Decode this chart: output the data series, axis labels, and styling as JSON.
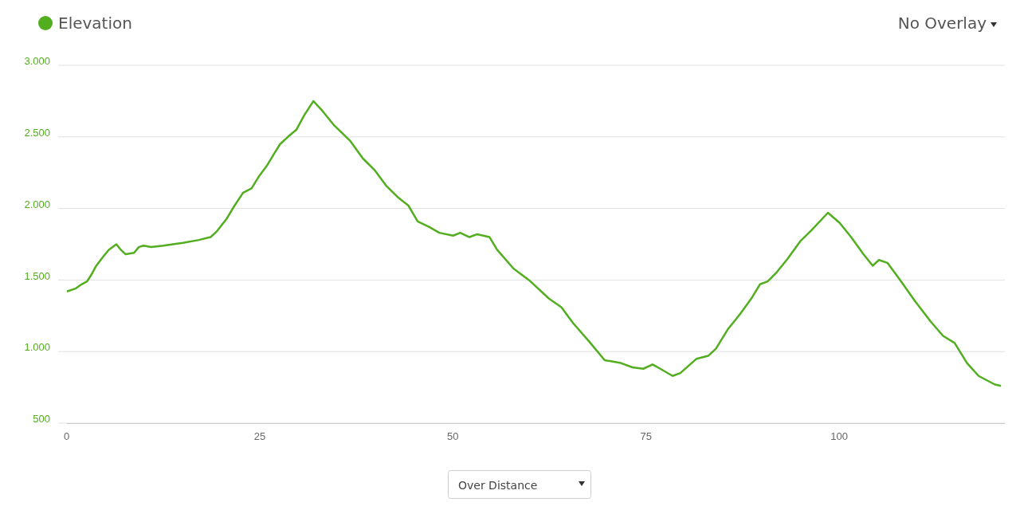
{
  "chart_data": {
    "type": "line",
    "legend": "top left",
    "grid": "y",
    "marker": "none",
    "line_style": "solid",
    "xlim": [
      0,
      121.5
    ],
    "xticks": [
      0,
      25,
      50,
      75,
      100
    ],
    "ylim": [
      500,
      3000
    ],
    "yticks": [
      {
        "value": 500,
        "label": "500"
      },
      {
        "value": 1000,
        "label": "1.000"
      },
      {
        "value": 1500,
        "label": "1.500"
      },
      {
        "value": 2000,
        "label": "2.000"
      },
      {
        "value": 2500,
        "label": "2.500"
      },
      {
        "value": 3000,
        "label": "3.000"
      }
    ],
    "annotations": [
      "No Overlay",
      "Over Distance"
    ],
    "series": [
      {
        "name": "Elevation",
        "color": "#52ae1f",
        "x": [
          0.1,
          1.2,
          2.0,
          2.7,
          3.3,
          3.9,
          4.6,
          5.5,
          6.5,
          7.1,
          7.7,
          8.8,
          9.4,
          10.0,
          11.0,
          12.6,
          15.1,
          17.2,
          18.7,
          19.5,
          20.8,
          21.8,
          22.9,
          24.0,
          24.9,
          26.0,
          27.0,
          27.7,
          28.7,
          29.8,
          30.8,
          32.0,
          33.2,
          34.7,
          36.8,
          38.4,
          39.9,
          41.4,
          42.9,
          44.3,
          45.5,
          47.0,
          48.3,
          50.1,
          51.0,
          52.2,
          53.2,
          54.8,
          55.8,
          57.9,
          59.9,
          62.5,
          64.1,
          65.6,
          67.7,
          69.7,
          71.8,
          73.3,
          74.7,
          75.9,
          76.9,
          78.5,
          79.5,
          81.6,
          83.1,
          84.1,
          85.7,
          87.2,
          88.8,
          89.8,
          90.8,
          91.9,
          93.4,
          95.0,
          96.5,
          98.6,
          100.1,
          101.6,
          103.2,
          104.4,
          105.2,
          106.3,
          107.8,
          109.9,
          111.9,
          113.5,
          115.0,
          116.6,
          118.1,
          120.2,
          121.0
        ],
        "values": [
          1420,
          1440,
          1470,
          1490,
          1540,
          1600,
          1650,
          1710,
          1750,
          1710,
          1680,
          1690,
          1730,
          1740,
          1730,
          1740,
          1760,
          1780,
          1800,
          1840,
          1930,
          2020,
          2110,
          2140,
          2220,
          2300,
          2390,
          2450,
          2500,
          2550,
          2650,
          2750,
          2680,
          2580,
          2470,
          2350,
          2270,
          2160,
          2080,
          2020,
          1910,
          1870,
          1830,
          1810,
          1830,
          1800,
          1820,
          1800,
          1710,
          1580,
          1500,
          1370,
          1310,
          1200,
          1070,
          940,
          920,
          890,
          880,
          910,
          880,
          830,
          850,
          950,
          970,
          1020,
          1160,
          1260,
          1380,
          1470,
          1490,
          1550,
          1650,
          1770,
          1850,
          1970,
          1900,
          1800,
          1680,
          1600,
          1640,
          1620,
          1510,
          1350,
          1210,
          1110,
          1060,
          920,
          830,
          770,
          760
        ]
      }
    ]
  }
}
